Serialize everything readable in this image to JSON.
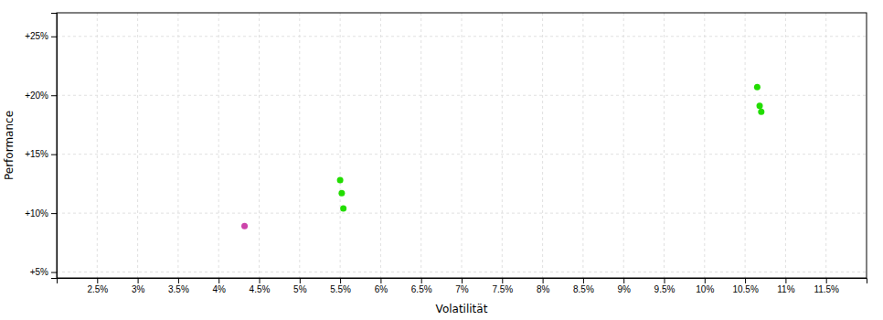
{
  "chart_data": {
    "type": "scatter",
    "xlabel": "Volatilität",
    "ylabel": "Performance",
    "xlim": [
      0.02,
      0.12
    ],
    "ylim": [
      0.045,
      0.27
    ],
    "xticks": [
      {
        "value": 0.025,
        "label": "2.5%"
      },
      {
        "value": 0.03,
        "label": "3%"
      },
      {
        "value": 0.035,
        "label": "3.5%"
      },
      {
        "value": 0.04,
        "label": "4%"
      },
      {
        "value": 0.045,
        "label": "4.5%"
      },
      {
        "value": 0.05,
        "label": "5%"
      },
      {
        "value": 0.055,
        "label": "5.5%"
      },
      {
        "value": 0.06,
        "label": "6%"
      },
      {
        "value": 0.065,
        "label": "6.5%"
      },
      {
        "value": 0.07,
        "label": "7%"
      },
      {
        "value": 0.075,
        "label": "7.5%"
      },
      {
        "value": 0.08,
        "label": "8%"
      },
      {
        "value": 0.085,
        "label": "8.5%"
      },
      {
        "value": 0.09,
        "label": "9%"
      },
      {
        "value": 0.095,
        "label": "9.5%"
      },
      {
        "value": 0.1,
        "label": "10%"
      },
      {
        "value": 0.105,
        "label": "10.5%"
      },
      {
        "value": 0.11,
        "label": "11%"
      },
      {
        "value": 0.115,
        "label": "11.5%"
      }
    ],
    "yticks": [
      {
        "value": 0.05,
        "label": "+5%"
      },
      {
        "value": 0.1,
        "label": "+10%"
      },
      {
        "value": 0.15,
        "label": "+15%"
      },
      {
        "value": 0.2,
        "label": "+20%"
      },
      {
        "value": 0.25,
        "label": "+25%"
      }
    ],
    "grid": true,
    "series": [
      {
        "color": "#22dd00",
        "x": [
          0.055,
          0.0552,
          0.0554,
          0.1065,
          0.1068,
          0.107
        ],
        "values": [
          0.128,
          0.117,
          0.104,
          0.207,
          0.191,
          0.186
        ]
      },
      {
        "color": "#cc44aa",
        "x": [
          0.0432
        ],
        "values": [
          0.089
        ]
      }
    ]
  }
}
